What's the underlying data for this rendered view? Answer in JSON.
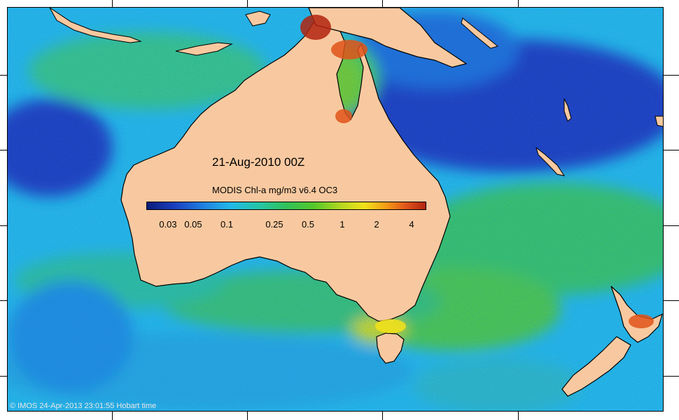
{
  "map": {
    "date_label": "21-Aug-2010 00Z",
    "colorbar_title": "MODIS Chl-a mg/m3 v6.4 OC3",
    "colorbar_ticks": [
      "0.03",
      "0.05",
      "0.1",
      "0.25",
      "0.5",
      "1",
      "2",
      "4"
    ],
    "copyright": "© IMOS 24-Apr-2013 23:01:55 Hobart time"
  },
  "colors": {
    "land": "#f8c9a0",
    "ocean_low": "#1a3fc0",
    "ocean_mid": "#22b8e8",
    "ocean_green": "#2fc25a",
    "high": "#e0541a"
  }
}
